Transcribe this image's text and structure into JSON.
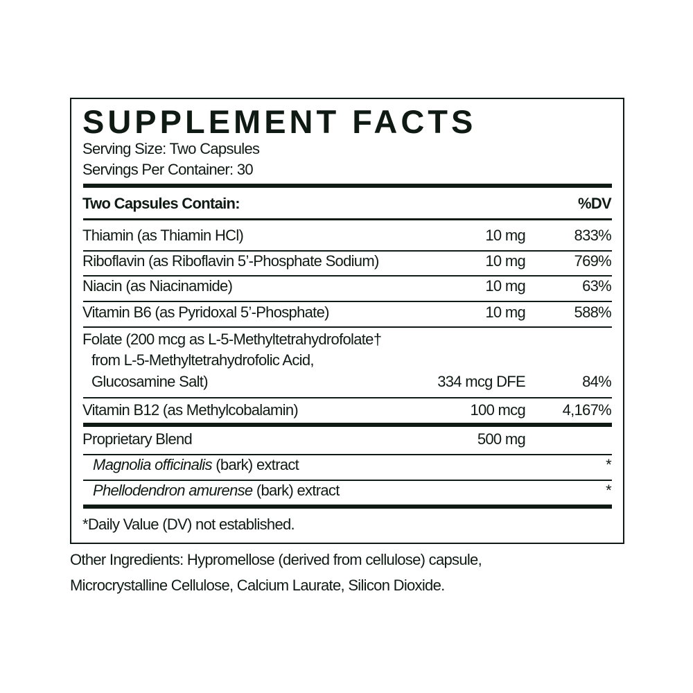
{
  "title": "SUPPLEMENT FACTS",
  "serving_size": "Serving Size: Two Capsules",
  "servings_per_container": "Servings Per Container: 30",
  "header": {
    "label": "Two Capsules Contain:",
    "dv": "%DV"
  },
  "rows": [
    {
      "name": "Thiamin (as Thiamin HCl)",
      "amount": "10 mg",
      "dv": "833%"
    },
    {
      "name": "Riboflavin (as Riboflavin 5’-Phosphate Sodium)",
      "amount": "10 mg",
      "dv": "769%"
    },
    {
      "name": "Niacin (as Niacinamide)",
      "amount": "10 mg",
      "dv": "63%"
    },
    {
      "name": "Vitamin B6 (as Pyridoxal 5’-Phosphate)",
      "amount": "10 mg",
      "dv": "588%"
    },
    {
      "name_lines": [
        "Folate (200 mcg as L-5-Methyltetrahydrofolate†",
        "from L-5-Methyltetrahydrofolic Acid,",
        "Glucosamine Salt)"
      ],
      "amount": "334 mcg DFE",
      "dv": "84%"
    },
    {
      "name": "Vitamin B12 (as Methylcobalamin)",
      "amount": "100 mcg",
      "dv": "4,167%"
    }
  ],
  "blend": {
    "name": "Proprietary Blend",
    "amount": "500 mg",
    "items": [
      {
        "latin": "Magnolia officinalis",
        "rest": " (bark) extract",
        "dv": "*"
      },
      {
        "latin": "Phellodendron amurense",
        "rest": " (bark) extract",
        "dv": "*"
      }
    ]
  },
  "footnote": "*Daily Value (DV) not established.",
  "other_ingredients": [
    "Other Ingredients: Hypromellose (derived from cellulose) capsule,",
    "Microcrystalline Cellulose, Calcium Laurate, Silicon Dioxide."
  ],
  "colors": {
    "ink": "#0f1a14"
  }
}
